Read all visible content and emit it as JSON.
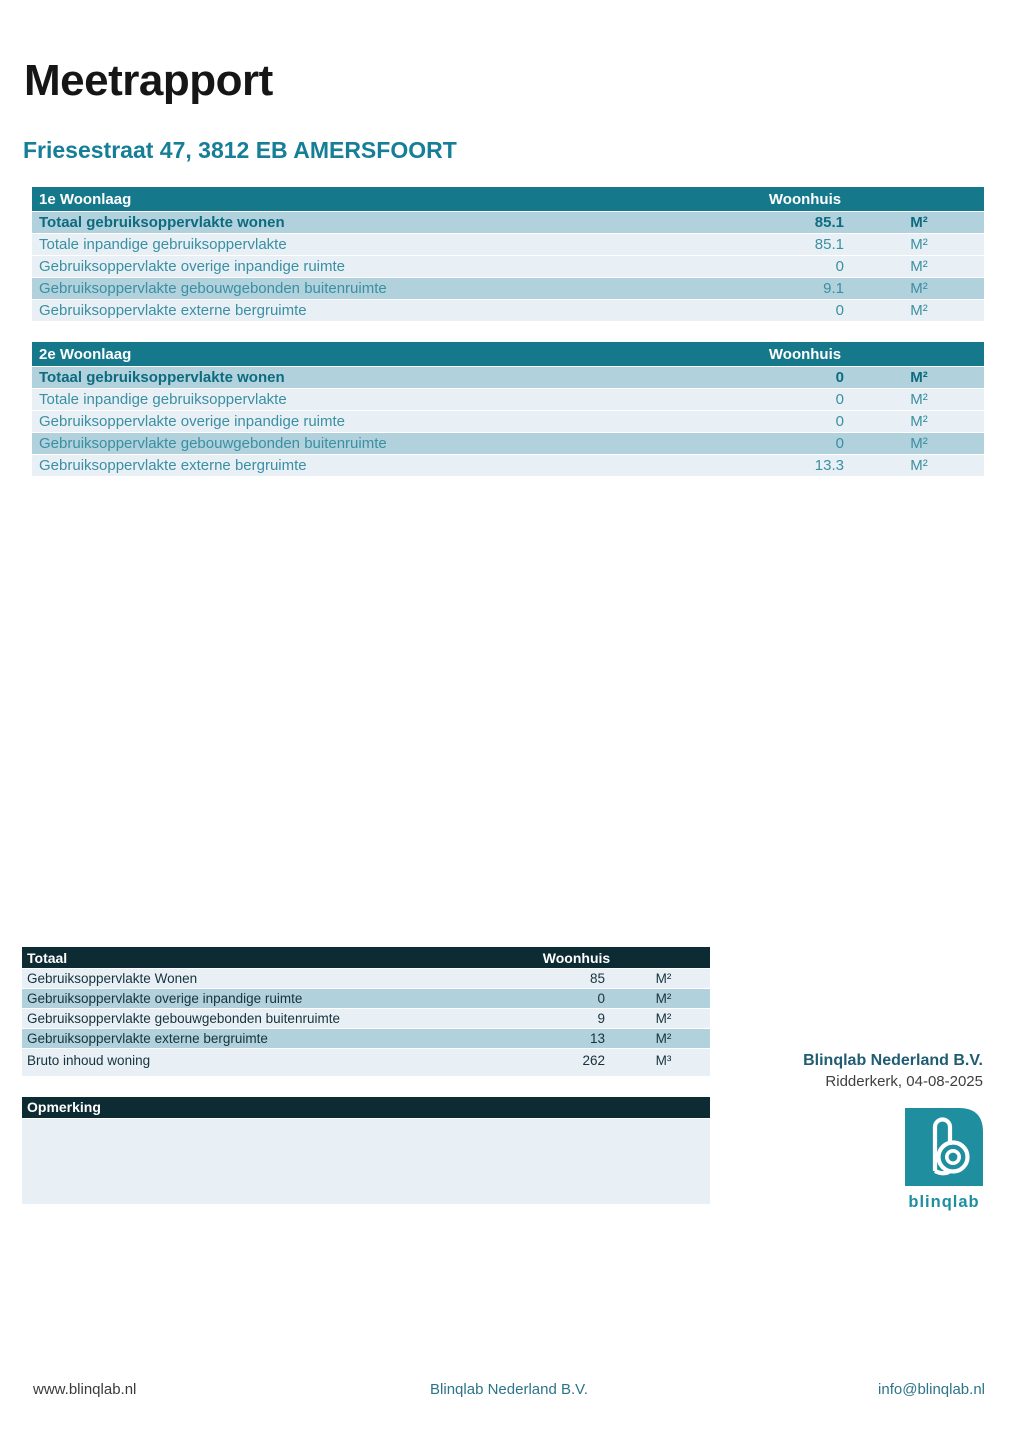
{
  "page": {
    "title": "Meetrapport",
    "subtitle": "Friesestraat 47, 3812 EB AMERSFOORT"
  },
  "colors": {
    "accent_teal": "#15798b",
    "row_medium": "#b1d2dc",
    "row_light": "#e9f0f5",
    "dark_header": "#0d2b33",
    "subtitle_teal": "#177e97",
    "logo_teal": "#1f8fa0",
    "row_text_teal": "#3a8fa3",
    "bold_row_text": "#0d6b80"
  },
  "tables": [
    {
      "title": "1e Woonlaag",
      "column_header": "Woonhuis",
      "rows": [
        {
          "label": "Totaal gebruiksoppervlakte wonen",
          "value": "85.1",
          "unit": "M²",
          "bold": true,
          "tone": "medium"
        },
        {
          "label": "Totale inpandige gebruiksoppervlakte",
          "value": "85.1",
          "unit": "M²",
          "bold": false,
          "tone": "light"
        },
        {
          "label": "Gebruiksoppervlakte overige inpandige ruimte",
          "value": "0",
          "unit": "M²",
          "bold": false,
          "tone": "light"
        },
        {
          "label": "Gebruiksoppervlakte gebouwgebonden buitenruimte",
          "value": "9.1",
          "unit": "M²",
          "bold": false,
          "tone": "medium"
        },
        {
          "label": "Gebruiksoppervlakte externe bergruimte",
          "value": "0",
          "unit": "M²",
          "bold": false,
          "tone": "light"
        }
      ]
    },
    {
      "title": "2e Woonlaag",
      "column_header": "Woonhuis",
      "rows": [
        {
          "label": "Totaal gebruiksoppervlakte wonen",
          "value": "0",
          "unit": "M²",
          "bold": true,
          "tone": "medium"
        },
        {
          "label": "Totale inpandige gebruiksoppervlakte",
          "value": "0",
          "unit": "M²",
          "bold": false,
          "tone": "light"
        },
        {
          "label": "Gebruiksoppervlakte overige inpandige ruimte",
          "value": "0",
          "unit": "M²",
          "bold": false,
          "tone": "light"
        },
        {
          "label": "Gebruiksoppervlakte gebouwgebonden buitenruimte",
          "value": "0",
          "unit": "M²",
          "bold": false,
          "tone": "medium"
        },
        {
          "label": "Gebruiksoppervlakte externe bergruimte",
          "value": "13.3",
          "unit": "M²",
          "bold": false,
          "tone": "light"
        }
      ]
    }
  ],
  "totals_table": {
    "title": "Totaal",
    "column_header": "Woonhuis",
    "rows": [
      {
        "label": "Gebruiksoppervlakte Wonen",
        "value": "85",
        "unit": "M²",
        "bold": false,
        "tone": "light"
      },
      {
        "label": "Gebruiksoppervlakte overige inpandige ruimte",
        "value": "0",
        "unit": "M²",
        "bold": false,
        "tone": "medium"
      },
      {
        "label": "Gebruiksoppervlakte gebouwgebonden buitenruimte",
        "value": "9",
        "unit": "M²",
        "bold": false,
        "tone": "light"
      },
      {
        "label": "Gebruiksoppervlakte externe bergruimte",
        "value": "13",
        "unit": "M²",
        "bold": false,
        "tone": "medium"
      },
      {
        "label": "Bruto inhoud woning",
        "value": "262",
        "unit": "M³",
        "bold": false,
        "tone": "light"
      }
    ]
  },
  "remark": {
    "title": "Opmerking"
  },
  "signature": {
    "company": "Blinqlab Nederland B.V.",
    "place_date": "Ridderkerk, 04-08-2025"
  },
  "logo": {
    "wordmark": "blinqlab"
  },
  "footer": {
    "left": "www.blinqlab.nl",
    "center": "Blinqlab Nederland B.V.",
    "right": "info@blinqlab.nl"
  }
}
